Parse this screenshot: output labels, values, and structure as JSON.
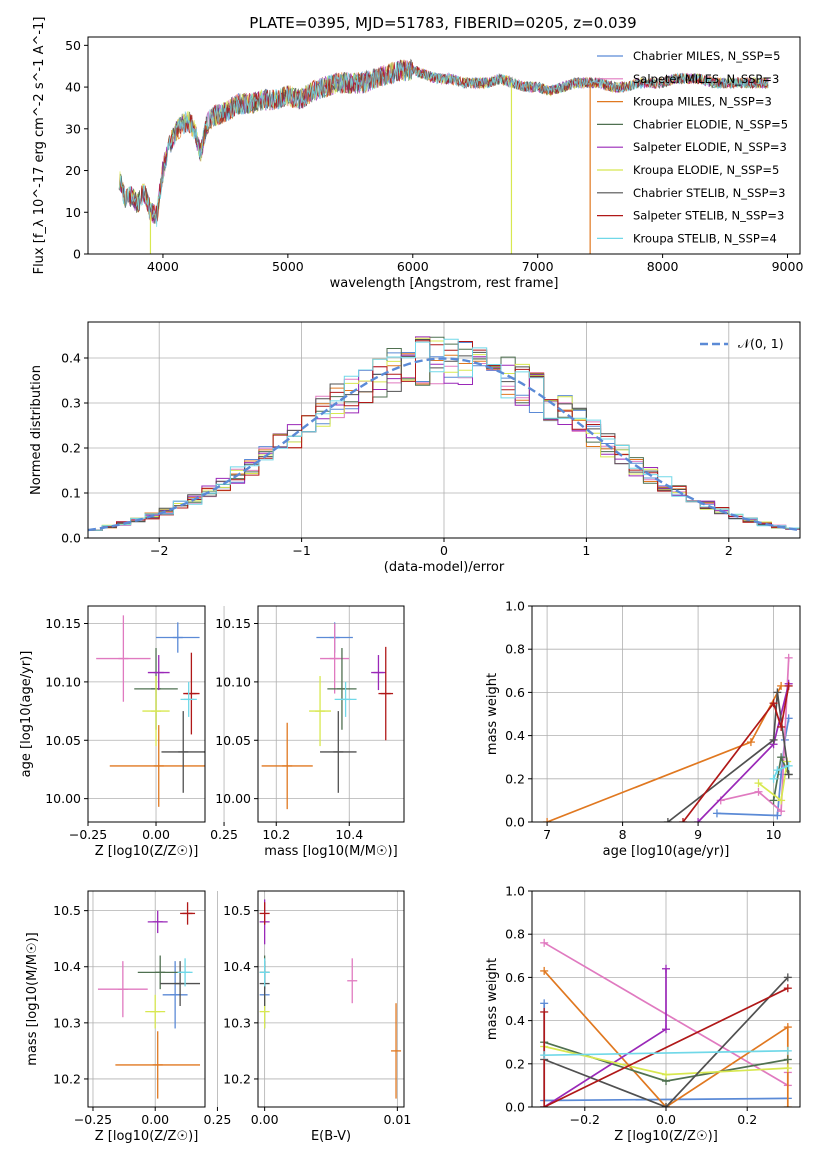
{
  "figure_title": "PLATE=0395, MJD=51783, FIBERID=0205, z=0.039",
  "colors": {
    "c1": "#5b8ad6",
    "c2": "#e07ac0",
    "c3": "#e07820",
    "c4": "#4f7050",
    "c5": "#9a28b8",
    "c6": "#d8e850",
    "c7": "#505050",
    "c8": "#b01818",
    "c9": "#70d8e8"
  },
  "chart_data": [
    {
      "id": "spectrum",
      "type": "line",
      "title": "PLATE=0395, MJD=51783, FIBERID=0205, z=0.039",
      "xlabel": "wavelength [Angstrom, rest frame]",
      "ylabel": "Flux [f_λ 10^-17 erg cm^-2 s^-1 A^-1]",
      "xlim": [
        3400,
        9100
      ],
      "ylim": [
        0,
        52
      ],
      "xticks": [
        4000,
        5000,
        6000,
        7000,
        8000,
        9000
      ],
      "yticks": [
        0,
        10,
        20,
        30,
        40,
        50
      ],
      "grid": false,
      "legend_position": "top-right",
      "series": [
        {
          "name": "Chabrier MILES, N_SSP=5",
          "color": "#5b8ad6"
        },
        {
          "name": "Salpeter MILES, N_SSP=3",
          "color": "#e07ac0"
        },
        {
          "name": "Kroupa MILES, N_SSP=3",
          "color": "#e07820"
        },
        {
          "name": "Chabrier ELODIE, N_SSP=5",
          "color": "#4f7050"
        },
        {
          "name": "Salpeter ELODIE, N_SSP=3",
          "color": "#9a28b8"
        },
        {
          "name": "Kroupa ELODIE, N_SSP=5",
          "color": "#d8e850"
        },
        {
          "name": "Chabrier STELIB, N_SSP=3",
          "color": "#505050"
        },
        {
          "name": "Salpeter STELIB, N_SSP=3",
          "color": "#b01818"
        },
        {
          "name": "Kroupa STELIB, N_SSP=4",
          "color": "#70d8e8"
        }
      ],
      "envelope": {
        "x": [
          3650,
          3700,
          3750,
          3800,
          3850,
          3900,
          3950,
          4000,
          4050,
          4100,
          4150,
          4200,
          4250,
          4300,
          4350,
          4400,
          4500,
          4600,
          4700,
          4800,
          4900,
          5000,
          5100,
          5200,
          5300,
          5400,
          5500,
          5600,
          5700,
          5800,
          5900,
          6000,
          6100,
          6200,
          6300,
          6400,
          6500,
          6600,
          6700,
          6800,
          6900,
          7000,
          7100,
          7200,
          7300,
          7400,
          7500,
          7600,
          7700,
          7800,
          7900,
          8000,
          8100,
          8200,
          8300,
          8400,
          8500,
          8600,
          8700,
          8850
        ],
        "y": [
          18,
          13,
          14,
          12,
          15,
          10,
          9,
          20,
          26,
          29,
          31,
          32,
          30,
          24,
          31,
          33,
          34,
          36,
          36,
          37,
          37,
          38,
          37,
          39,
          40,
          41,
          41,
          41,
          42,
          43,
          44,
          44,
          43,
          42,
          42,
          41,
          41,
          41,
          42,
          41,
          40,
          40,
          39,
          40,
          41,
          41,
          41,
          40,
          40,
          41,
          41,
          41,
          42,
          42,
          42,
          41,
          41,
          41,
          41,
          41
        ]
      },
      "dropouts": [
        {
          "x": 3900,
          "color": "#d8e850"
        },
        {
          "x": 6790,
          "color": "#d8e850"
        },
        {
          "x": 7420,
          "color": "#e07820"
        }
      ]
    },
    {
      "id": "residuals",
      "type": "histogram",
      "xlabel": "(data-model)/error",
      "ylabel": "Normed distribution",
      "xlim": [
        -2.5,
        2.5
      ],
      "ylim": [
        0,
        0.48
      ],
      "xticks": [
        -2,
        -1,
        0,
        1,
        2
      ],
      "yticks": [
        0.0,
        0.1,
        0.2,
        0.3,
        0.4
      ],
      "grid": true,
      "legend_position": "top-right",
      "legend": [
        {
          "label": "𝒩(0, 1)",
          "color": "#5b8ad6",
          "style": "dashed"
        }
      ],
      "bin_width": 0.1
    },
    {
      "id": "age-vs-Z",
      "type": "errorbar",
      "xlabel": "Z [log10(Z/Z☉)]",
      "ylabel": "age [log10(age/yr)]",
      "xlim": [
        -0.25,
        0.18
      ],
      "ylim": [
        9.98,
        10.165
      ],
      "xticks": [
        -0.25,
        0.0,
        0.25
      ],
      "yticks": [
        10.0,
        10.05,
        10.1,
        10.15
      ],
      "grid": true,
      "points": [
        {
          "color": "#5b8ad6",
          "x": 0.08,
          "xerr": 0.08,
          "y": 10.138,
          "yerr": 0.013
        },
        {
          "color": "#e07ac0",
          "x": -0.12,
          "xerr": 0.1,
          "y": 10.12,
          "yerr": 0.037
        },
        {
          "color": "#e07820",
          "x": 0.01,
          "xerr": 0.18,
          "y": 10.028,
          "yerr": 0.035
        },
        {
          "color": "#4f7050",
          "x": 0.0,
          "xerr": 0.08,
          "y": 10.094,
          "yerr": 0.035
        },
        {
          "color": "#9a28b8",
          "x": 0.01,
          "xerr": 0.04,
          "y": 10.108,
          "yerr": 0.015
        },
        {
          "color": "#d8e850",
          "x": 0.0,
          "xerr": 0.05,
          "y": 10.075,
          "yerr": 0.03
        },
        {
          "color": "#505050",
          "x": 0.1,
          "xerr": 0.08,
          "y": 10.04,
          "yerr": 0.035
        },
        {
          "color": "#b01818",
          "x": 0.13,
          "xerr": 0.03,
          "y": 10.09,
          "yerr": 0.035
        },
        {
          "color": "#70d8e8",
          "x": 0.12,
          "xerr": 0.03,
          "y": 10.085,
          "yerr": 0.015
        }
      ]
    },
    {
      "id": "age-vs-mass",
      "type": "errorbar",
      "xlabel": "mass [log10(M/M☉)]",
      "ylabel": "",
      "xlim": [
        10.15,
        10.55
      ],
      "ylim": [
        9.98,
        10.165
      ],
      "xticks": [
        10.2,
        10.4
      ],
      "yticks": [
        10.0,
        10.05,
        10.1,
        10.15
      ],
      "grid": true,
      "points": [
        {
          "color": "#5b8ad6",
          "x": 10.36,
          "xerr": 0.05,
          "y": 10.138,
          "yerr": 0.013
        },
        {
          "color": "#e07ac0",
          "x": 10.36,
          "xerr": 0.04,
          "y": 10.12,
          "yerr": 0.03
        },
        {
          "color": "#e07820",
          "x": 10.23,
          "xerr": 0.07,
          "y": 10.028,
          "yerr": 0.037
        },
        {
          "color": "#4f7050",
          "x": 10.38,
          "xerr": 0.04,
          "y": 10.094,
          "yerr": 0.035
        },
        {
          "color": "#9a28b8",
          "x": 10.48,
          "xerr": 0.02,
          "y": 10.108,
          "yerr": 0.015
        },
        {
          "color": "#d8e850",
          "x": 10.32,
          "xerr": 0.03,
          "y": 10.075,
          "yerr": 0.03
        },
        {
          "color": "#505050",
          "x": 10.37,
          "xerr": 0.05,
          "y": 10.04,
          "yerr": 0.035
        },
        {
          "color": "#b01818",
          "x": 10.5,
          "xerr": 0.02,
          "y": 10.09,
          "yerr": 0.04
        },
        {
          "color": "#70d8e8",
          "x": 10.39,
          "xerr": 0.03,
          "y": 10.085,
          "yerr": 0.015
        }
      ]
    },
    {
      "id": "weight-vs-age",
      "type": "line",
      "xlabel": "age [log10(age/yr)]",
      "ylabel": "mass weight",
      "xlim": [
        6.8,
        10.35
      ],
      "ylim": [
        0.0,
        1.0
      ],
      "xticks": [
        7,
        8,
        9,
        10
      ],
      "yticks": [
        0.0,
        0.2,
        0.4,
        0.6,
        0.8,
        1.0
      ],
      "grid": true,
      "series": [
        {
          "color": "#5b8ad6",
          "x": [
            9.25,
            10.05,
            10.1,
            10.15,
            10.2
          ],
          "y": [
            0.04,
            0.03,
            0.22,
            0.38,
            0.48
          ]
        },
        {
          "color": "#e07ac0",
          "x": [
            9.3,
            9.8,
            10.1,
            10.2
          ],
          "y": [
            0.1,
            0.14,
            0.05,
            0.76
          ]
        },
        {
          "color": "#e07820",
          "x": [
            7.0,
            9.7,
            10.1
          ],
          "y": [
            0.0,
            0.37,
            0.63
          ]
        },
        {
          "color": "#4f7050",
          "x": [
            10.0,
            10.1,
            10.2
          ],
          "y": [
            0.1,
            0.3,
            0.22
          ]
        },
        {
          "color": "#9a28b8",
          "x": [
            9.0,
            10.0,
            10.2
          ],
          "y": [
            0.0,
            0.36,
            0.64
          ]
        },
        {
          "color": "#d8e850",
          "x": [
            9.8,
            10.1,
            10.18
          ],
          "y": [
            0.18,
            0.1,
            0.28
          ]
        },
        {
          "color": "#505050",
          "x": [
            8.6,
            10.0,
            10.05,
            10.2
          ],
          "y": [
            0.0,
            0.38,
            0.6,
            0.22
          ]
        },
        {
          "color": "#b01818",
          "x": [
            8.8,
            10.0,
            10.1,
            10.2
          ],
          "y": [
            0.0,
            0.55,
            0.44,
            0.63
          ]
        },
        {
          "color": "#70d8e8",
          "x": [
            10.0,
            10.05,
            10.2
          ],
          "y": [
            0.2,
            0.24,
            0.26
          ]
        }
      ]
    },
    {
      "id": "mass-vs-Z",
      "type": "errorbar",
      "xlabel": "Z [log10(Z/Z☉)]",
      "ylabel": "mass [log10(M/M☉)]",
      "xlim": [
        -0.27,
        0.2
      ],
      "ylim": [
        10.15,
        10.535
      ],
      "xticks": [
        -0.25,
        0.0,
        0.25
      ],
      "yticks": [
        10.2,
        10.3,
        10.4,
        10.5
      ],
      "grid": true,
      "points": [
        {
          "color": "#5b8ad6",
          "x": 0.08,
          "xerr": 0.05,
          "y": 10.35,
          "yerr": 0.06
        },
        {
          "color": "#e07ac0",
          "x": -0.13,
          "xerr": 0.1,
          "y": 10.36,
          "yerr": 0.05
        },
        {
          "color": "#e07820",
          "x": 0.01,
          "xerr": 0.17,
          "y": 10.225,
          "yerr": 0.06
        },
        {
          "color": "#4f7050",
          "x": 0.02,
          "xerr": 0.09,
          "y": 10.39,
          "yerr": 0.03
        },
        {
          "color": "#9a28b8",
          "x": 0.01,
          "xerr": 0.04,
          "y": 10.48,
          "yerr": 0.02
        },
        {
          "color": "#d8e850",
          "x": 0.0,
          "xerr": 0.04,
          "y": 10.32,
          "yerr": 0.03
        },
        {
          "color": "#505050",
          "x": 0.1,
          "xerr": 0.08,
          "y": 10.37,
          "yerr": 0.04
        },
        {
          "color": "#b01818",
          "x": 0.13,
          "xerr": 0.03,
          "y": 10.495,
          "yerr": 0.02
        },
        {
          "color": "#70d8e8",
          "x": 0.12,
          "xerr": 0.03,
          "y": 10.39,
          "yerr": 0.025
        }
      ]
    },
    {
      "id": "mass-vs-ebv",
      "type": "errorbar",
      "xlabel": "E(B-V)",
      "ylabel": "",
      "xlim": [
        -0.0005,
        0.0105
      ],
      "ylim": [
        10.15,
        10.535
      ],
      "xticks": [
        0.0,
        0.01
      ],
      "yticks": [
        10.2,
        10.3,
        10.4,
        10.5
      ],
      "grid": true,
      "points": [
        {
          "color": "#5b8ad6",
          "x": 0.0,
          "xerr": 0,
          "y": 10.35,
          "yerr": 0.06
        },
        {
          "color": "#e07ac0",
          "x": 0.0066,
          "xerr": 0,
          "y": 10.375,
          "yerr": 0.04
        },
        {
          "color": "#e07820",
          "x": 0.0099,
          "xerr": 0,
          "y": 10.25,
          "yerr": 0.085
        },
        {
          "color": "#4f7050",
          "x": 0.0,
          "xerr": 0,
          "y": 10.39,
          "yerr": 0.03
        },
        {
          "color": "#9a28b8",
          "x": 0.0,
          "xerr": 0,
          "y": 10.48,
          "yerr": 0.04
        },
        {
          "color": "#d8e850",
          "x": 0.0,
          "xerr": 0,
          "y": 10.32,
          "yerr": 0.03
        },
        {
          "color": "#505050",
          "x": 0.0,
          "xerr": 0,
          "y": 10.37,
          "yerr": 0.04
        },
        {
          "color": "#b01818",
          "x": 0.0,
          "xerr": 0,
          "y": 10.495,
          "yerr": 0.02
        },
        {
          "color": "#70d8e8",
          "x": 0.0,
          "xerr": 0,
          "y": 10.39,
          "yerr": 0.025
        }
      ]
    },
    {
      "id": "weight-vs-Z",
      "type": "line",
      "xlabel": "Z [log10(Z/Z☉)]",
      "ylabel": "mass weight",
      "xlim": [
        -0.33,
        0.33
      ],
      "ylim": [
        0.0,
        1.0
      ],
      "xticks": [
        -0.2,
        0.0,
        0.2
      ],
      "yticks": [
        0.0,
        0.2,
        0.4,
        0.6,
        0.8,
        1.0
      ],
      "grid": true,
      "series": [
        {
          "color": "#5b8ad6",
          "x": [
            -0.3,
            -0.3,
            0.3
          ],
          "y": [
            0.48,
            0.03,
            0.04
          ]
        },
        {
          "color": "#e07ac0",
          "x": [
            -0.3,
            0.3,
            0.3
          ],
          "y": [
            0.76,
            0.1,
            0.16
          ]
        },
        {
          "color": "#e07820",
          "x": [
            -0.3,
            0.0,
            0.3,
            0.3
          ],
          "y": [
            0.63,
            0.0,
            0.37,
            0.0
          ]
        },
        {
          "color": "#4f7050",
          "x": [
            -0.3,
            0.0,
            0.3
          ],
          "y": [
            0.3,
            0.12,
            0.22
          ]
        },
        {
          "color": "#9a28b8",
          "x": [
            -0.3,
            0.0,
            0.0
          ],
          "y": [
            0.0,
            0.36,
            0.64
          ]
        },
        {
          "color": "#d8e850",
          "x": [
            -0.3,
            0.0,
            0.3
          ],
          "y": [
            0.28,
            0.15,
            0.18
          ]
        },
        {
          "color": "#505050",
          "x": [
            -0.3,
            0.0,
            0.3
          ],
          "y": [
            0.22,
            0.0,
            0.6
          ]
        },
        {
          "color": "#b01818",
          "x": [
            -0.3,
            -0.3,
            0.3
          ],
          "y": [
            0.44,
            0.0,
            0.55
          ]
        },
        {
          "color": "#70d8e8",
          "x": [
            -0.3,
            0.3
          ],
          "y": [
            0.24,
            0.26
          ]
        }
      ]
    }
  ]
}
